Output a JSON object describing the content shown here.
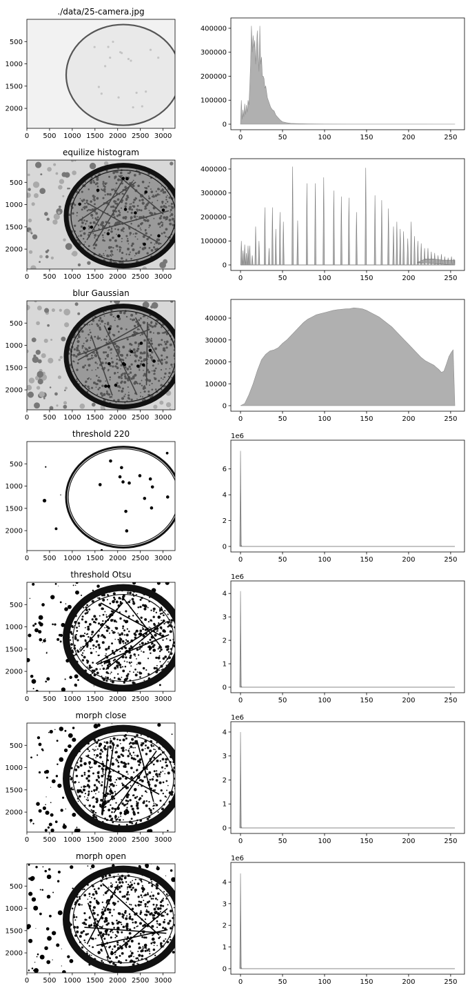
{
  "chart_data": [
    {
      "type": "image",
      "title": "./data/25-camera.jpg",
      "style": "light-gray",
      "x_ticks": [
        "0",
        "500",
        "1000",
        "1500",
        "2000",
        "2500",
        "3000"
      ],
      "y_ticks": [
        "500",
        "1000",
        "1500",
        "2000"
      ]
    },
    {
      "type": "area",
      "title": "",
      "xlim": [
        0,
        255
      ],
      "ylim": [
        0,
        420000
      ],
      "x_ticks": [
        "0",
        "50",
        "100",
        "150",
        "200",
        "250"
      ],
      "y_ticks": [
        "0",
        "100000",
        "200000",
        "300000",
        "400000"
      ],
      "y_tick_values": [
        0,
        100000,
        200000,
        300000,
        400000
      ],
      "y_offset": "",
      "color": "#b0b0b0",
      "points": [
        [
          0,
          0
        ],
        [
          1,
          100000
        ],
        [
          2,
          20000
        ],
        [
          3,
          60000
        ],
        [
          4,
          30000
        ],
        [
          5,
          85000
        ],
        [
          6,
          40000
        ],
        [
          7,
          80000
        ],
        [
          8,
          50000
        ],
        [
          9,
          100000
        ],
        [
          10,
          80000
        ],
        [
          11,
          160000
        ],
        [
          12,
          250000
        ],
        [
          13,
          410000
        ],
        [
          14,
          300000
        ],
        [
          15,
          370000
        ],
        [
          16,
          320000
        ],
        [
          17,
          350000
        ],
        [
          18,
          250000
        ],
        [
          19,
          320000
        ],
        [
          20,
          390000
        ],
        [
          21,
          300000
        ],
        [
          22,
          220000
        ],
        [
          23,
          410000
        ],
        [
          24,
          250000
        ],
        [
          25,
          280000
        ],
        [
          26,
          200000
        ],
        [
          27,
          200000
        ],
        [
          28,
          190000
        ],
        [
          29,
          150000
        ],
        [
          30,
          160000
        ],
        [
          32,
          110000
        ],
        [
          34,
          90000
        ],
        [
          36,
          70000
        ],
        [
          38,
          60000
        ],
        [
          40,
          55000
        ],
        [
          42,
          38000
        ],
        [
          44,
          30000
        ],
        [
          46,
          22000
        ],
        [
          48,
          15000
        ],
        [
          50,
          10000
        ],
        [
          55,
          6000
        ],
        [
          60,
          3500
        ],
        [
          70,
          2000
        ],
        [
          80,
          1200
        ],
        [
          100,
          500
        ],
        [
          150,
          300
        ],
        [
          200,
          200
        ],
        [
          255,
          100
        ]
      ]
    },
    {
      "type": "image",
      "title": "equilize histogram",
      "style": "equalized",
      "x_ticks": [
        "0",
        "500",
        "1000",
        "1500",
        "2000",
        "2500",
        "3000"
      ],
      "y_ticks": [
        "500",
        "1000",
        "1500",
        "2000"
      ]
    },
    {
      "type": "spikes",
      "title": "",
      "xlim": [
        0,
        255
      ],
      "ylim": [
        0,
        420000
      ],
      "x_ticks": [
        "0",
        "50",
        "100",
        "150",
        "200",
        "250"
      ],
      "y_ticks": [
        "0",
        "100000",
        "200000",
        "300000",
        "400000"
      ],
      "y_tick_values": [
        0,
        100000,
        200000,
        300000,
        400000
      ],
      "y_offset": "",
      "color": "#b0b0b0",
      "spikes": [
        [
          1,
          100000
        ],
        [
          3,
          60000
        ],
        [
          5,
          85000
        ],
        [
          7,
          50000
        ],
        [
          9,
          80000
        ],
        [
          11,
          80000
        ],
        [
          14,
          40000
        ],
        [
          18,
          160000
        ],
        [
          22,
          100000
        ],
        [
          29,
          240000
        ],
        [
          34,
          70000
        ],
        [
          38,
          240000
        ],
        [
          42,
          150000
        ],
        [
          47,
          220000
        ],
        [
          51,
          180000
        ],
        [
          62,
          410000
        ],
        [
          68,
          185000
        ],
        [
          79,
          340000
        ],
        [
          89,
          340000
        ],
        [
          99,
          365000
        ],
        [
          111,
          310000
        ],
        [
          120,
          285000
        ],
        [
          129,
          280000
        ],
        [
          138,
          220000
        ],
        [
          149,
          405000
        ],
        [
          160,
          290000
        ],
        [
          168,
          270000
        ],
        [
          176,
          235000
        ],
        [
          182,
          160000
        ],
        [
          186,
          180000
        ],
        [
          190,
          150000
        ],
        [
          194,
          140000
        ],
        [
          199,
          110000
        ],
        [
          203,
          180000
        ],
        [
          207,
          120000
        ],
        [
          211,
          100000
        ],
        [
          215,
          90000
        ],
        [
          219,
          70000
        ],
        [
          223,
          70000
        ],
        [
          227,
          55000
        ],
        [
          231,
          50000
        ],
        [
          235,
          40000
        ],
        [
          239,
          45000
        ],
        [
          243,
          35000
        ],
        [
          247,
          30000
        ],
        [
          251,
          35000
        ],
        [
          254,
          25000
        ]
      ],
      "floor": [
        [
          210,
          10000
        ],
        [
          220,
          25000
        ],
        [
          230,
          25000
        ],
        [
          240,
          20000
        ],
        [
          255,
          20000
        ]
      ]
    },
    {
      "type": "image",
      "title": "blur Gaussian",
      "style": "equalized",
      "x_ticks": [
        "0",
        "500",
        "1000",
        "1500",
        "2000",
        "2500",
        "3000"
      ],
      "y_ticks": [
        "500",
        "1000",
        "1500",
        "2000"
      ]
    },
    {
      "type": "area",
      "title": "",
      "xlim": [
        0,
        255
      ],
      "ylim": [
        0,
        46000
      ],
      "x_ticks": [
        "0",
        "50",
        "100",
        "150",
        "200",
        "250"
      ],
      "y_ticks": [
        "0",
        "10000",
        "20000",
        "30000",
        "40000"
      ],
      "y_tick_values": [
        0,
        10000,
        20000,
        30000,
        40000
      ],
      "y_offset": "",
      "color": "#b0b0b0",
      "points": [
        [
          0,
          0
        ],
        [
          5,
          1000
        ],
        [
          10,
          5000
        ],
        [
          15,
          10000
        ],
        [
          20,
          16000
        ],
        [
          25,
          21000
        ],
        [
          30,
          23500
        ],
        [
          35,
          25000
        ],
        [
          40,
          25500
        ],
        [
          45,
          26500
        ],
        [
          50,
          28500
        ],
        [
          55,
          30000
        ],
        [
          60,
          32000
        ],
        [
          65,
          34000
        ],
        [
          70,
          36000
        ],
        [
          75,
          38000
        ],
        [
          80,
          39500
        ],
        [
          85,
          40500
        ],
        [
          90,
          41500
        ],
        [
          95,
          42000
        ],
        [
          100,
          42500
        ],
        [
          105,
          43000
        ],
        [
          110,
          43500
        ],
        [
          115,
          43800
        ],
        [
          120,
          44000
        ],
        [
          125,
          44200
        ],
        [
          130,
          44300
        ],
        [
          135,
          44700
        ],
        [
          140,
          44500
        ],
        [
          145,
          44200
        ],
        [
          150,
          43500
        ],
        [
          155,
          42500
        ],
        [
          160,
          41500
        ],
        [
          165,
          40500
        ],
        [
          170,
          39000
        ],
        [
          175,
          37500
        ],
        [
          180,
          36000
        ],
        [
          185,
          34000
        ],
        [
          190,
          32000
        ],
        [
          195,
          30000
        ],
        [
          200,
          28000
        ],
        [
          205,
          26000
        ],
        [
          210,
          24000
        ],
        [
          215,
          22000
        ],
        [
          220,
          20500
        ],
        [
          225,
          19500
        ],
        [
          230,
          18500
        ],
        [
          233,
          17500
        ],
        [
          236,
          16500
        ],
        [
          239,
          15200
        ],
        [
          242,
          15800
        ],
        [
          245,
          19000
        ],
        [
          248,
          22500
        ],
        [
          251,
          24500
        ],
        [
          253,
          25500
        ],
        [
          255,
          0
        ]
      ]
    },
    {
      "type": "image",
      "title": "threshold 220",
      "style": "threshold-light",
      "x_ticks": [
        "0",
        "500",
        "1000",
        "1500",
        "2000",
        "2500",
        "3000"
      ],
      "y_ticks": [
        "500",
        "1000",
        "1500",
        "2000"
      ]
    },
    {
      "type": "spikes",
      "title": "",
      "xlim": [
        0,
        255
      ],
      "ylim": [
        0,
        7800000
      ],
      "x_ticks": [
        "0",
        "50",
        "100",
        "150",
        "200",
        "250"
      ],
      "y_ticks": [
        "0",
        "2",
        "4",
        "6"
      ],
      "y_tick_values": [
        0,
        2000000,
        4000000,
        6000000
      ],
      "y_offset": "1e6",
      "color": "#999999",
      "spikes": [
        [
          0,
          7400000
        ],
        [
          1,
          100000
        ]
      ],
      "floor": [
        [
          255,
          0
        ]
      ]
    },
    {
      "type": "image",
      "title": "threshold Otsu",
      "style": "threshold-dark",
      "x_ticks": [
        "0",
        "500",
        "1000",
        "1500",
        "2000",
        "2500",
        "3000"
      ],
      "y_ticks": [
        "500",
        "1000",
        "1500",
        "2000"
      ]
    },
    {
      "type": "spikes",
      "title": "",
      "xlim": [
        0,
        255
      ],
      "ylim": [
        0,
        4300000
      ],
      "x_ticks": [
        "0",
        "50",
        "100",
        "150",
        "200",
        "250"
      ],
      "y_ticks": [
        "0",
        "1",
        "2",
        "3",
        "4"
      ],
      "y_tick_values": [
        0,
        1000000,
        2000000,
        3000000,
        4000000
      ],
      "y_offset": "1e6",
      "color": "#999999",
      "spikes": [
        [
          0,
          4100000
        ],
        [
          1,
          50000
        ]
      ],
      "floor": [
        [
          255,
          0
        ]
      ]
    },
    {
      "type": "image",
      "title": "morph close",
      "style": "threshold-dark",
      "x_ticks": [
        "0",
        "500",
        "1000",
        "1500",
        "2000",
        "2500",
        "3000"
      ],
      "y_ticks": [
        "500",
        "1000",
        "1500",
        "2000"
      ]
    },
    {
      "type": "spikes",
      "title": "",
      "xlim": [
        0,
        255
      ],
      "ylim": [
        0,
        4200000
      ],
      "x_ticks": [
        "0",
        "50",
        "100",
        "150",
        "200",
        "250"
      ],
      "y_ticks": [
        "0",
        "1",
        "2",
        "3",
        "4"
      ],
      "y_tick_values": [
        0,
        1000000,
        2000000,
        3000000,
        4000000
      ],
      "y_offset": "1e6",
      "color": "#999999",
      "spikes": [
        [
          0,
          4000000
        ],
        [
          1,
          50000
        ]
      ],
      "floor": [
        [
          255,
          0
        ]
      ]
    },
    {
      "type": "image",
      "title": "morph open",
      "style": "threshold-dark",
      "x_ticks": [
        "0",
        "500",
        "1000",
        "1500",
        "2000",
        "2500",
        "3000"
      ],
      "y_ticks": [
        "500",
        "1000",
        "1500",
        "2000"
      ]
    },
    {
      "type": "spikes",
      "title": "",
      "xlim": [
        0,
        255
      ],
      "ylim": [
        0,
        4650000
      ],
      "x_ticks": [
        "0",
        "50",
        "100",
        "150",
        "200",
        "250"
      ],
      "y_ticks": [
        "0",
        "1",
        "2",
        "3",
        "4"
      ],
      "y_tick_values": [
        0,
        1000000,
        2000000,
        3000000,
        4000000
      ],
      "y_offset": "1e6",
      "color": "#999999",
      "spikes": [
        [
          0,
          4400000
        ],
        [
          1,
          50000
        ]
      ],
      "floor": [
        [
          255,
          0
        ]
      ]
    }
  ]
}
